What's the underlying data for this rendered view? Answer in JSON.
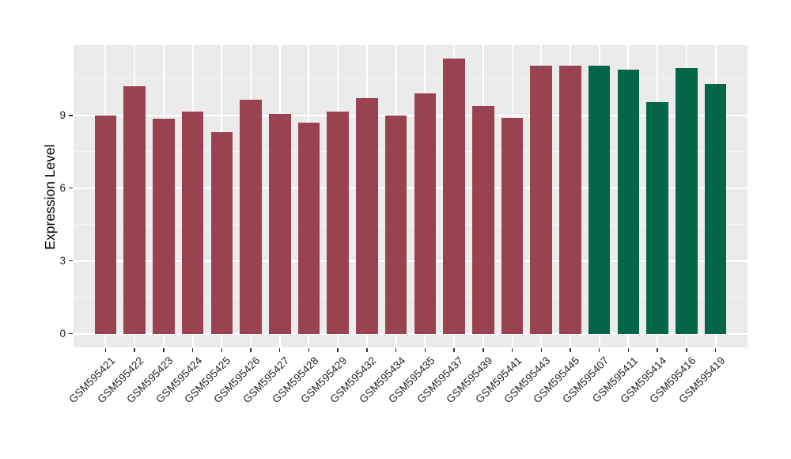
{
  "figure": {
    "background_color": "#ffffff",
    "panel_background_color": "#ebebeb",
    "grid_major_color": "#ffffff",
    "grid_minor_color": "#f5f5f5",
    "tick_mark_color": "#333333",
    "axis_text_color": "#262626",
    "axis_title_color": "#000000"
  },
  "chart_data": {
    "type": "bar",
    "title": "",
    "xlabel": "",
    "ylabel": "Expression Level",
    "legend": false,
    "grid": true,
    "yticks": [
      0,
      3,
      6,
      9
    ],
    "ylim": [
      -0.57,
      11.9
    ],
    "categories": [
      "GSM595421",
      "GSM595422",
      "GSM595423",
      "GSM595424",
      "GSM595425",
      "GSM595426",
      "GSM595427",
      "GSM595428",
      "GSM595429",
      "GSM595432",
      "GSM595434",
      "GSM595435",
      "GSM595437",
      "GSM595439",
      "GSM595441",
      "GSM595443",
      "GSM595445",
      "GSM595407",
      "GSM595411",
      "GSM595414",
      "GSM595416",
      "GSM595419"
    ],
    "values": [
      9.0,
      10.2,
      8.85,
      9.15,
      8.3,
      9.65,
      9.05,
      8.7,
      9.15,
      9.7,
      9.0,
      9.9,
      11.35,
      9.4,
      8.9,
      11.05,
      11.05,
      11.05,
      10.9,
      9.55,
      10.95,
      10.3
    ],
    "bar_groups": [
      "A",
      "A",
      "A",
      "A",
      "A",
      "A",
      "A",
      "A",
      "A",
      "A",
      "A",
      "A",
      "A",
      "A",
      "A",
      "A",
      "A",
      "B",
      "B",
      "B",
      "B",
      "B"
    ],
    "group_colors": {
      "A": "#9a4350",
      "B": "#036648"
    }
  }
}
